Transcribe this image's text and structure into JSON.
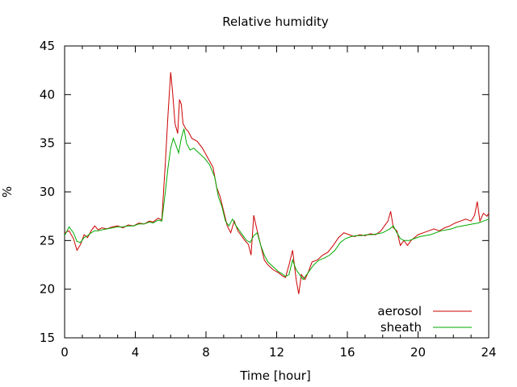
{
  "chart_data": {
    "type": "line",
    "title": "Relative humidity",
    "xlabel": "Time [hour]",
    "ylabel": "%",
    "xlim": [
      0,
      24
    ],
    "ylim": [
      15,
      45
    ],
    "xticks": [
      0,
      4,
      8,
      12,
      16,
      20,
      24
    ],
    "yticks": [
      15,
      20,
      25,
      30,
      35,
      40,
      45
    ],
    "xminor_step": 1,
    "grid": false,
    "legend_position": "bottom-right",
    "series": [
      {
        "name": "aerosol",
        "color": "#cc0000",
        "x": [
          0,
          0.25,
          0.5,
          0.7,
          0.9,
          1.1,
          1.3,
          1.5,
          1.7,
          1.9,
          2.1,
          2.4,
          2.7,
          3.0,
          3.3,
          3.6,
          3.9,
          4.2,
          4.5,
          4.8,
          5.0,
          5.3,
          5.5,
          5.7,
          5.85,
          6.0,
          6.1,
          6.25,
          6.4,
          6.5,
          6.6,
          6.7,
          6.85,
          7.0,
          7.2,
          7.5,
          7.8,
          8.1,
          8.4,
          8.6,
          8.8,
          9.0,
          9.2,
          9.4,
          9.6,
          9.8,
          10.0,
          10.2,
          10.4,
          10.55,
          10.7,
          10.9,
          11.1,
          11.3,
          11.5,
          11.8,
          12.1,
          12.3,
          12.5,
          12.7,
          12.9,
          13.1,
          13.25,
          13.4,
          13.6,
          13.8,
          14.0,
          14.3,
          14.6,
          14.9,
          15.2,
          15.5,
          15.8,
          16.1,
          16.4,
          16.7,
          17.0,
          17.3,
          17.6,
          17.9,
          18.1,
          18.3,
          18.45,
          18.6,
          18.8,
          19.0,
          19.2,
          19.4,
          19.6,
          19.8,
          20.0,
          20.3,
          20.6,
          20.9,
          21.2,
          21.5,
          21.8,
          22.1,
          22.4,
          22.7,
          23.0,
          23.2,
          23.35,
          23.5,
          23.7,
          23.9,
          24.0
        ],
        "values": [
          25.8,
          26.0,
          25.2,
          24.0,
          24.6,
          25.6,
          25.3,
          26.0,
          26.5,
          26.1,
          26.3,
          26.2,
          26.4,
          26.5,
          26.3,
          26.6,
          26.5,
          26.8,
          26.7,
          27.0,
          26.9,
          27.3,
          27.1,
          33.0,
          38.0,
          42.3,
          40.5,
          37.0,
          36.0,
          39.5,
          39.0,
          37.0,
          36.5,
          36.2,
          35.5,
          35.2,
          34.5,
          33.5,
          32.5,
          30.5,
          29.5,
          28.0,
          26.5,
          25.8,
          27.0,
          26.0,
          25.5,
          25.0,
          24.6,
          23.5,
          27.6,
          26.0,
          24.5,
          23.0,
          22.5,
          22.0,
          21.7,
          21.4,
          21.2,
          22.5,
          24.0,
          21.0,
          19.5,
          21.5,
          21.0,
          21.8,
          22.8,
          23.0,
          23.5,
          23.8,
          24.5,
          25.3,
          25.8,
          25.6,
          25.4,
          25.6,
          25.5,
          25.7,
          25.6,
          26.0,
          26.5,
          27.0,
          28.0,
          26.3,
          26.0,
          24.5,
          25.0,
          24.5,
          25.0,
          25.3,
          25.6,
          25.8,
          26.0,
          26.2,
          26.0,
          26.3,
          26.5,
          26.8,
          27.0,
          27.2,
          27.0,
          27.6,
          29.0,
          27.0,
          27.8,
          27.5,
          27.8
        ]
      },
      {
        "name": "sheath",
        "color": "#00aa00",
        "x": [
          0,
          0.25,
          0.5,
          0.7,
          0.9,
          1.1,
          1.3,
          1.5,
          1.7,
          1.9,
          2.1,
          2.4,
          2.7,
          3.0,
          3.3,
          3.6,
          3.9,
          4.2,
          4.5,
          4.8,
          5.0,
          5.3,
          5.5,
          5.7,
          5.85,
          6.0,
          6.15,
          6.3,
          6.45,
          6.6,
          6.75,
          6.9,
          7.1,
          7.3,
          7.6,
          7.9,
          8.2,
          8.5,
          8.7,
          8.9,
          9.1,
          9.3,
          9.5,
          9.7,
          9.9,
          10.1,
          10.3,
          10.5,
          10.7,
          10.9,
          11.1,
          11.3,
          11.5,
          11.8,
          12.1,
          12.3,
          12.5,
          12.7,
          12.9,
          13.1,
          13.3,
          13.5,
          13.7,
          13.9,
          14.1,
          14.4,
          14.7,
          15.0,
          15.3,
          15.6,
          15.9,
          16.2,
          16.5,
          16.8,
          17.1,
          17.4,
          17.7,
          18.0,
          18.2,
          18.4,
          18.6,
          18.8,
          19.0,
          19.2,
          19.5,
          19.8,
          20.1,
          20.4,
          20.7,
          21.0,
          21.3,
          21.6,
          21.9,
          22.2,
          22.5,
          22.8,
          23.1,
          23.4,
          23.7,
          24.0
        ],
        "values": [
          25.5,
          26.4,
          25.8,
          24.9,
          24.8,
          25.3,
          25.5,
          25.8,
          26.0,
          26.0,
          26.1,
          26.2,
          26.3,
          26.4,
          26.4,
          26.5,
          26.5,
          26.7,
          26.7,
          26.9,
          26.8,
          27.1,
          27.0,
          30.0,
          32.5,
          34.5,
          35.5,
          34.8,
          34.0,
          35.5,
          36.5,
          35.0,
          34.3,
          34.5,
          34.0,
          33.5,
          32.8,
          31.5,
          29.5,
          28.5,
          27.0,
          26.5,
          27.2,
          26.5,
          26.0,
          25.5,
          25.0,
          24.8,
          25.5,
          25.8,
          24.5,
          23.5,
          22.8,
          22.3,
          21.8,
          21.6,
          21.3,
          21.5,
          23.0,
          22.0,
          21.5,
          21.0,
          21.5,
          22.0,
          22.5,
          23.0,
          23.2,
          23.5,
          24.0,
          24.8,
          25.2,
          25.4,
          25.5,
          25.5,
          25.6,
          25.6,
          25.7,
          25.8,
          26.0,
          26.2,
          26.5,
          25.8,
          25.2,
          25.0,
          25.0,
          25.2,
          25.4,
          25.5,
          25.6,
          25.8,
          26.0,
          26.1,
          26.2,
          26.4,
          26.5,
          26.6,
          26.7,
          26.8,
          27.0,
          27.2
        ]
      }
    ]
  }
}
